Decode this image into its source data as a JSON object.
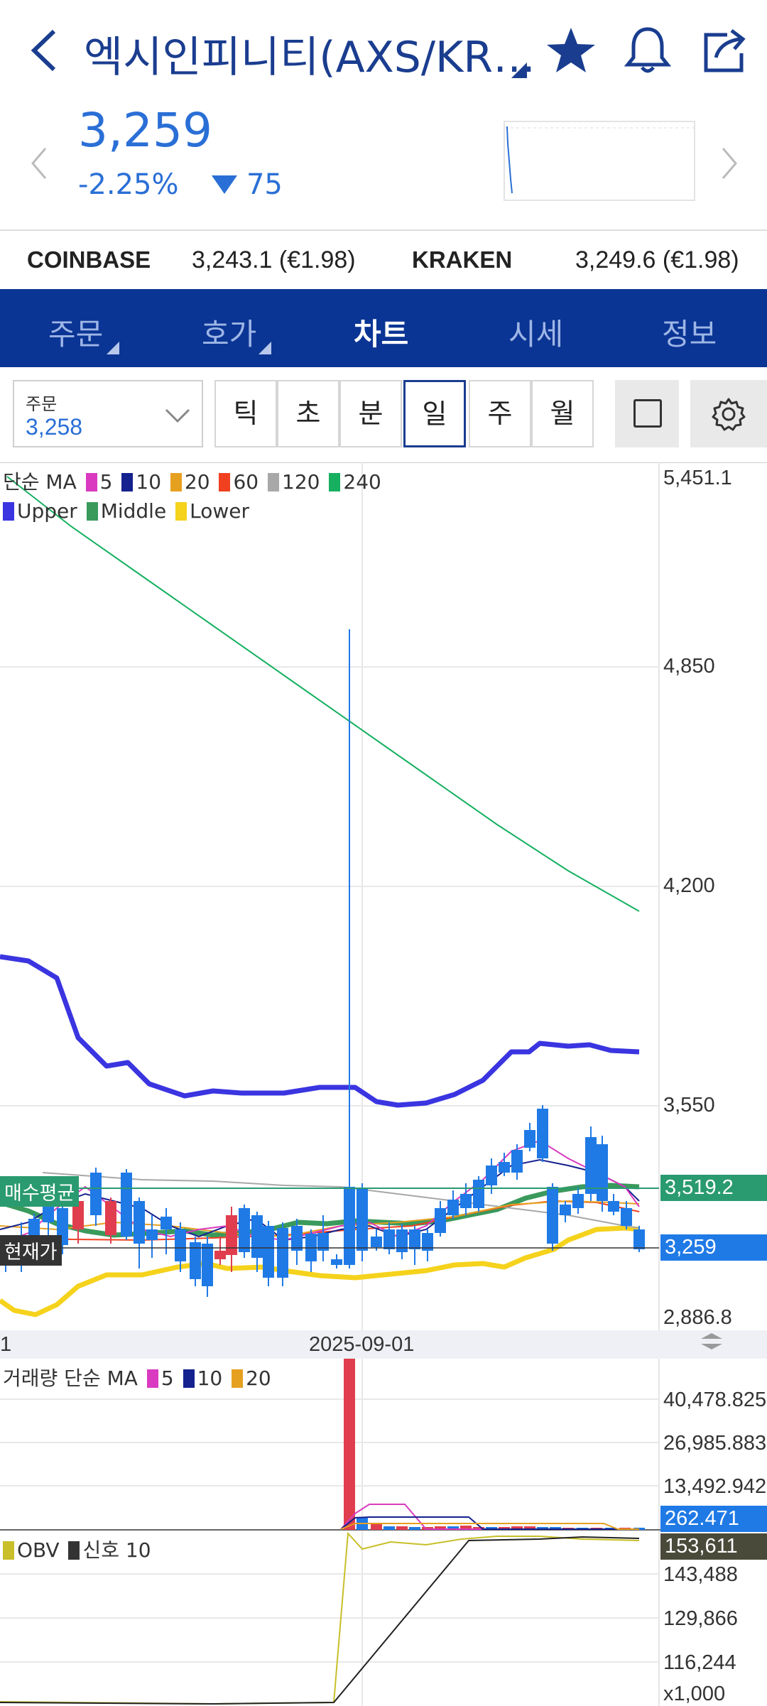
{
  "header": {
    "title": "엑시인피니티(AXS/KR…",
    "back_icon": "chevron-left-icon",
    "star_icon": "star-icon",
    "bell_icon": "bell-icon",
    "share_icon": "share-icon"
  },
  "quote": {
    "price": "3,259",
    "change_pct": "-2.25%",
    "change_abs": "75"
  },
  "exchanges": [
    {
      "name": "COINBASE",
      "value": "3,243.1 (€1.98)"
    },
    {
      "name": "KRAKEN",
      "value": "3,249.6 (€1.98)"
    }
  ],
  "tabs": [
    {
      "label": "주문"
    },
    {
      "label": "호가"
    },
    {
      "label": "차트"
    },
    {
      "label": "시세"
    },
    {
      "label": "정보"
    }
  ],
  "order_select": {
    "label": "주문",
    "value": "3,258"
  },
  "periods": [
    "틱",
    "초",
    "분",
    "일",
    "주",
    "월"
  ],
  "colors": {
    "brand": "#0b3594",
    "up": "#e03e4e",
    "down": "#1f7ae6",
    "bb_upper": "#3a35e0",
    "bb_middle": "#3a9a5c",
    "bb_lower": "#f5d21c",
    "ma5": "#d93ac0",
    "ma10": "#14218f",
    "ma20": "#e6a020",
    "ma60": "#f04020",
    "ma120": "#a8a8a8",
    "ma240": "#16b060"
  },
  "price_legend": {
    "ma_title": "단순 MA",
    "ma_items": [
      "5",
      "10",
      "20",
      "60",
      "120",
      "240"
    ],
    "bb_items": [
      "Upper",
      "Middle",
      "Lower"
    ]
  },
  "price_axis": [
    "5,451.1",
    "4,850",
    "4,200",
    "3,550",
    "2,886.8"
  ],
  "tags": {
    "avg_label": "매수평균",
    "avg_value": "3,519.2",
    "cur_label": "현재가",
    "cur_value": "3,259"
  },
  "date_axis": {
    "left": "1",
    "center": "2025-09-01"
  },
  "volume": {
    "title": "거래량 단순 MA",
    "ma_items": [
      "5",
      "10",
      "20"
    ],
    "axis": [
      "40,478.825",
      "26,985.883",
      "13,492.942"
    ],
    "current": "262.471"
  },
  "obv": {
    "title": "OBV",
    "signal": "신호 10",
    "current": "153,611",
    "axis": [
      "143,488",
      "129,866",
      "116,244"
    ],
    "unit": "x1,000"
  }
}
